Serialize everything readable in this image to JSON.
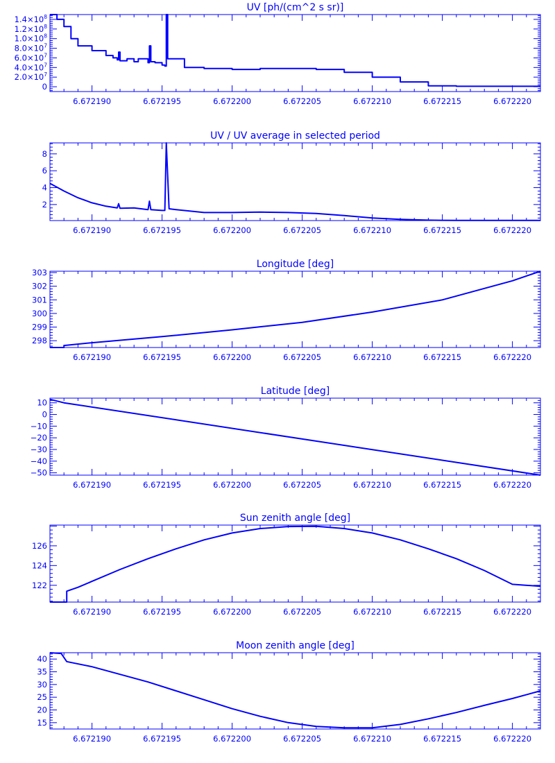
{
  "chart_data": [
    {
      "type": "line",
      "title": "UV [ph/(cm^2 s sr)]",
      "xlim": [
        6.672187,
        6.672222
      ],
      "ylim": [
        -10000000.0,
        150000000.0
      ],
      "xticks": [
        "6.672190",
        "6.672195",
        "6.672200",
        "6.672205",
        "6.672210",
        "6.672215",
        "6.672220"
      ],
      "yticks": [
        0,
        20000000.0,
        40000000.0,
        60000000.0,
        80000000.0,
        100000000.0,
        120000000.0,
        140000000.0
      ],
      "ytick_labels": [
        {
          "m": "0",
          "e": ""
        },
        {
          "m": "2.0×10",
          "e": "7"
        },
        {
          "m": "4.0×10",
          "e": "7"
        },
        {
          "m": "6.0×10",
          "e": "7"
        },
        {
          "m": "8.0×10",
          "e": "7"
        },
        {
          "m": "1.0×10",
          "e": "8"
        },
        {
          "m": "1.2×10",
          "e": "8"
        },
        {
          "m": "1.4×10",
          "e": "8"
        }
      ],
      "step": true,
      "series": [
        {
          "x": [
            6.672187,
            6.6721875,
            6.672188,
            6.6721885,
            6.672189,
            6.67219,
            6.672191,
            6.6721915,
            6.6721918,
            6.6721919,
            6.672192,
            6.6721925,
            6.672193,
            6.6721933,
            6.672194,
            6.6721941,
            6.6721942,
            6.6721945,
            6.672195,
            6.6721952,
            6.6721953,
            6.6721954,
            6.6721965,
            6.6721966,
            6.672198,
            6.6722,
            6.672202,
            6.672204,
            6.672206,
            6.672208,
            6.67221,
            6.672212,
            6.672214,
            6.672216,
            6.672218,
            6.672222
          ],
          "y": [
            150000000.0,
            140000000.0,
            125000000.0,
            100000000.0,
            85000000.0,
            75000000.0,
            65000000.0,
            60000000.0,
            56000000.0,
            72000000.0,
            54000000.0,
            58000000.0,
            52000000.0,
            58000000.0,
            50000000.0,
            85000000.0,
            52000000.0,
            50000000.0,
            45000000.0,
            43000000.0,
            150000000.0,
            58000000.0,
            58000000.0,
            40000000.0,
            38000000.0,
            36000000.0,
            38000000.0,
            38000000.0,
            36000000.0,
            30000000.0,
            20000000.0,
            10000000.0,
            2000000.0,
            1000000.0,
            1000000.0,
            1000000.0
          ]
        }
      ]
    },
    {
      "type": "line",
      "title": "UV / UV average in selected period",
      "xlim": [
        6.672187,
        6.672222
      ],
      "ylim": [
        0.1,
        9.3
      ],
      "xticks": [
        "6.672190",
        "6.672195",
        "6.672200",
        "6.672205",
        "6.672210",
        "6.672215",
        "6.672220"
      ],
      "yticks": [
        2,
        4,
        6,
        8
      ],
      "ytick_labels": [
        {
          "m": "2",
          "e": ""
        },
        {
          "m": "4",
          "e": ""
        },
        {
          "m": "6",
          "e": ""
        },
        {
          "m": "8",
          "e": ""
        }
      ],
      "series": [
        {
          "x": [
            6.672187,
            6.672188,
            6.672189,
            6.67219,
            6.672191,
            6.6721918,
            6.6721919,
            6.672192,
            6.672193,
            6.672194,
            6.6721941,
            6.6721942,
            6.672195,
            6.6721952,
            6.6721953,
            6.6721955,
            6.672196,
            6.672198,
            6.6722,
            6.672202,
            6.672204,
            6.672206,
            6.672208,
            6.67221,
            6.672212,
            6.672214,
            6.672216,
            6.672218,
            6.67222,
            6.672222
          ],
          "y": [
            4.5,
            3.6,
            2.8,
            2.2,
            1.8,
            1.6,
            2.1,
            1.55,
            1.6,
            1.4,
            2.4,
            1.4,
            1.3,
            1.3,
            9.3,
            1.5,
            1.4,
            1.05,
            1.05,
            1.1,
            1.05,
            0.95,
            0.7,
            0.4,
            0.25,
            0.15,
            0.12,
            0.12,
            0.12,
            0.12
          ]
        }
      ]
    },
    {
      "type": "line",
      "title": "Longitude [deg]",
      "xlim": [
        6.672187,
        6.672222
      ],
      "ylim": [
        297.5,
        303.1
      ],
      "xticks": [
        "6.672190",
        "6.672195",
        "6.672200",
        "6.672205",
        "6.672210",
        "6.672215",
        "6.672220"
      ],
      "yticks": [
        298,
        299,
        300,
        301,
        302,
        303
      ],
      "ytick_labels": [
        {
          "m": "298",
          "e": ""
        },
        {
          "m": "299",
          "e": ""
        },
        {
          "m": "300",
          "e": ""
        },
        {
          "m": "301",
          "e": ""
        },
        {
          "m": "302",
          "e": ""
        },
        {
          "m": "303",
          "e": ""
        }
      ],
      "series": [
        {
          "x": [
            6.672187,
            6.672188,
            6.672188,
            6.67219,
            6.672195,
            6.6722,
            6.672205,
            6.67221,
            6.672215,
            6.67222,
            6.672222
          ],
          "y": [
            297.5,
            297.5,
            297.65,
            297.85,
            298.3,
            298.8,
            299.35,
            300.1,
            301.0,
            302.4,
            303.1
          ]
        }
      ]
    },
    {
      "type": "line",
      "title": "Latitude [deg]",
      "xlim": [
        6.672187,
        6.672222
      ],
      "ylim": [
        -52,
        14
      ],
      "xticks": [
        "6.672190",
        "6.672195",
        "6.672200",
        "6.672205",
        "6.672210",
        "6.672215",
        "6.672220"
      ],
      "yticks": [
        -50,
        -40,
        -30,
        -20,
        -10,
        0,
        10
      ],
      "ytick_labels": [
        {
          "m": "−50",
          "e": ""
        },
        {
          "m": "−40",
          "e": ""
        },
        {
          "m": "−30",
          "e": ""
        },
        {
          "m": "−20",
          "e": ""
        },
        {
          "m": "−10",
          "e": ""
        },
        {
          "m": "0",
          "e": ""
        },
        {
          "m": "10",
          "e": ""
        }
      ],
      "series": [
        {
          "x": [
            6.672187,
            6.672188,
            6.672222
          ],
          "y": [
            13,
            10,
            -52
          ]
        }
      ]
    },
    {
      "type": "line",
      "title": "Sun zenith angle [deg]",
      "xlim": [
        6.672187,
        6.672222
      ],
      "ylim": [
        120.3,
        128.1
      ],
      "xticks": [
        "6.672190",
        "6.672195",
        "6.672200",
        "6.672205",
        "6.672210",
        "6.672215",
        "6.672220"
      ],
      "yticks": [
        122,
        124,
        126
      ],
      "ytick_labels": [
        {
          "m": "122",
          "e": ""
        },
        {
          "m": "124",
          "e": ""
        },
        {
          "m": "126",
          "e": ""
        }
      ],
      "series": [
        {
          "x": [
            6.672187,
            6.6721882,
            6.6721882,
            6.672189,
            6.67219,
            6.672192,
            6.672194,
            6.672196,
            6.672198,
            6.6722,
            6.672202,
            6.672204,
            6.672206,
            6.672208,
            6.67221,
            6.672212,
            6.672214,
            6.672216,
            6.672218,
            6.67222,
            6.672222
          ],
          "y": [
            120.3,
            120.3,
            121.4,
            121.8,
            122.4,
            123.6,
            124.7,
            125.7,
            126.6,
            127.3,
            127.75,
            127.95,
            127.98,
            127.75,
            127.3,
            126.6,
            125.7,
            124.7,
            123.5,
            122.1,
            121.9
          ]
        }
      ]
    },
    {
      "type": "line",
      "title": "Moon zenith angle [deg]",
      "xlim": [
        6.672187,
        6.672222
      ],
      "ylim": [
        12.5,
        42.5
      ],
      "xticks": [
        "6.672190",
        "6.672195",
        "6.672200",
        "6.672205",
        "6.672210",
        "6.672215",
        "6.672220"
      ],
      "yticks": [
        15,
        20,
        25,
        30,
        35,
        40
      ],
      "ytick_labels": [
        {
          "m": "15",
          "e": ""
        },
        {
          "m": "20",
          "e": ""
        },
        {
          "m": "25",
          "e": ""
        },
        {
          "m": "30",
          "e": ""
        },
        {
          "m": "35",
          "e": ""
        },
        {
          "m": "40",
          "e": ""
        }
      ],
      "series": [
        {
          "x": [
            6.672187,
            6.6721878,
            6.6721882,
            6.67219,
            6.672192,
            6.672194,
            6.672196,
            6.672198,
            6.6722,
            6.672202,
            6.672204,
            6.672206,
            6.672208,
            6.67221,
            6.672212,
            6.672214,
            6.672216,
            6.672218,
            6.67222,
            6.672222
          ],
          "y": [
            42.5,
            42.2,
            39,
            37,
            34,
            31,
            27.5,
            24,
            20.5,
            17.5,
            15,
            13.5,
            13,
            13,
            14.3,
            16.5,
            19,
            21.8,
            24.5,
            27.5
          ]
        }
      ]
    }
  ]
}
